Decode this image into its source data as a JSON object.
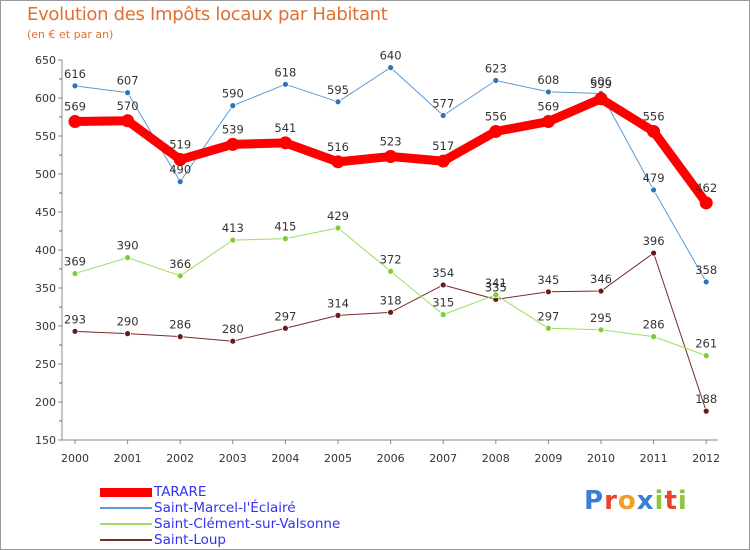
{
  "header": {
    "title": "Evolution des Impôts locaux par Habitant",
    "subtitle": "(en € et par an)"
  },
  "logo": {
    "text": "Proxiti"
  },
  "chart_data": {
    "type": "line",
    "title": "Evolution des Impôts locaux par Habitant",
    "subtitle": "(en € et par an)",
    "xlabel": "",
    "ylabel": "",
    "x": [
      "2000",
      "2001",
      "2002",
      "2003",
      "2004",
      "2005",
      "2006",
      "2007",
      "2008",
      "2009",
      "2010",
      "2011",
      "2012"
    ],
    "ylim": [
      150,
      650
    ],
    "yticks": [
      150,
      200,
      250,
      300,
      350,
      400,
      450,
      500,
      550,
      600,
      650
    ],
    "grid": false,
    "legend_position": "bottom-left",
    "series": [
      {
        "name": "TARARE",
        "color": "#ff0000",
        "marker": "#ff0000",
        "width": 9,
        "values": [
          569,
          570,
          519,
          539,
          541,
          516,
          523,
          517,
          556,
          569,
          599,
          556,
          462
        ]
      },
      {
        "name": "Saint-Marcel-l'Éclairé",
        "color": "#5b9bd5",
        "marker": "#2e75b6",
        "width": 1,
        "values": [
          616,
          607,
          490,
          590,
          618,
          595,
          640,
          577,
          623,
          608,
          606,
          479,
          358
        ]
      },
      {
        "name": "Saint-Clément-sur-Valsonne",
        "color": "#99e060",
        "marker": "#7dcc3a",
        "width": 1,
        "values": [
          369,
          390,
          366,
          413,
          415,
          429,
          372,
          315,
          341,
          297,
          295,
          286,
          261
        ]
      },
      {
        "name": "Saint-Loup",
        "color": "#7a2a2a",
        "marker": "#6a1a1a",
        "width": 1,
        "values": [
          293,
          290,
          286,
          280,
          297,
          314,
          318,
          354,
          335,
          345,
          346,
          396,
          188
        ]
      }
    ]
  }
}
